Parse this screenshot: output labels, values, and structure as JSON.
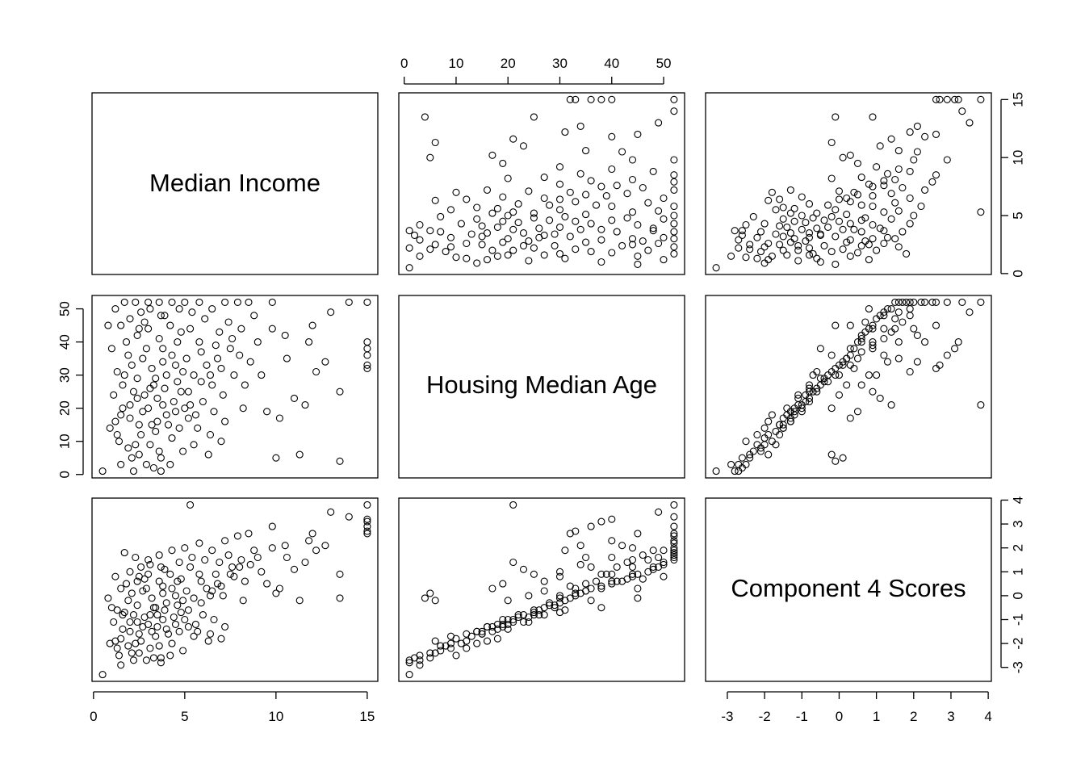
{
  "chart_data": {
    "type": "scatter",
    "variables": [
      {
        "key": "income",
        "label": "Median Income",
        "range": [
          0.5,
          15.0
        ]
      },
      {
        "key": "age",
        "label": "Housing Median Age",
        "range": [
          1,
          52
        ]
      },
      {
        "key": "comp4",
        "label": "Component 4 Scores",
        "range": [
          -3.3,
          3.8
        ]
      }
    ],
    "axes": {
      "income": {
        "ticks": [
          0,
          5,
          10,
          15
        ],
        "labels": [
          "0",
          "5",
          "10",
          "15"
        ]
      },
      "age": {
        "ticks": [
          0,
          10,
          20,
          30,
          40,
          50
        ],
        "labels": [
          "0",
          "10",
          "20",
          "30",
          "40",
          "50"
        ]
      },
      "comp4": {
        "ticks": [
          -3,
          -2,
          -1,
          0,
          1,
          2,
          3,
          4
        ],
        "labels": [
          "-3",
          "-2",
          "-1",
          "0",
          "1",
          "2",
          "3",
          "4"
        ]
      }
    },
    "grid": false,
    "legend": "none",
    "points": [
      [
        1.2,
        16,
        -1.9
      ],
      [
        1.5,
        18,
        -1.8
      ],
      [
        2.0,
        17,
        -1.5
      ],
      [
        2.5,
        15,
        -1.6
      ],
      [
        3.0,
        20,
        -1.2
      ],
      [
        3.5,
        16,
        -1.3
      ],
      [
        4.0,
        18,
        -1.4
      ],
      [
        2.2,
        25,
        -0.8
      ],
      [
        2.8,
        24,
        -0.9
      ],
      [
        3.3,
        27,
        -0.5
      ],
      [
        3.9,
        26,
        -0.6
      ],
      [
        4.4,
        22,
        -0.9
      ],
      [
        5.0,
        20,
        -1.0
      ],
      [
        5.6,
        18,
        -1.2
      ],
      [
        2.1,
        33,
        0.1
      ],
      [
        2.7,
        35,
        0.2
      ],
      [
        3.2,
        32,
        -0.1
      ],
      [
        3.8,
        34,
        0.1
      ],
      [
        4.3,
        36,
        0.3
      ],
      [
        4.9,
        31,
        -0.2
      ],
      [
        1.8,
        40,
        0.5
      ],
      [
        2.4,
        42,
        0.6
      ],
      [
        3.0,
        44,
        0.9
      ],
      [
        3.6,
        41,
        0.6
      ],
      [
        4.2,
        45,
        0.9
      ],
      [
        4.8,
        43,
        0.7
      ],
      [
        2.0,
        47,
        1.0
      ],
      [
        2.6,
        49,
        1.2
      ],
      [
        3.1,
        50,
        1.3
      ],
      [
        3.7,
        48,
        1.2
      ],
      [
        1.7,
        52,
        1.8
      ],
      [
        2.3,
        52,
        1.6
      ],
      [
        3.0,
        52,
        1.5
      ],
      [
        3.6,
        52,
        1.7
      ],
      [
        4.3,
        52,
        1.9
      ],
      [
        5.0,
        52,
        2.0
      ],
      [
        5.8,
        52,
        2.2
      ],
      [
        1.4,
        10,
        -2.5
      ],
      [
        1.9,
        8,
        -2.1
      ],
      [
        2.5,
        6,
        -2.4
      ],
      [
        3.1,
        9,
        -2.2
      ],
      [
        3.7,
        5,
        -2.6
      ],
      [
        4.3,
        11,
        -2.0
      ],
      [
        4.9,
        7,
        -2.3
      ],
      [
        0.9,
        14,
        -2.0
      ],
      [
        1.3,
        12,
        -2.2
      ],
      [
        2.4,
        29,
        -0.4
      ],
      [
        3.4,
        29,
        -0.5
      ],
      [
        4.6,
        28,
        -0.4
      ],
      [
        5.5,
        30,
        -0.1
      ],
      [
        6.2,
        33,
        0.3
      ],
      [
        6.8,
        35,
        0.5
      ],
      [
        7.5,
        38,
        0.9
      ],
      [
        5.2,
        25,
        -0.6
      ],
      [
        6.0,
        22,
        -0.8
      ],
      [
        6.6,
        19,
        -1.0
      ],
      [
        7.2,
        16,
        -1.3
      ],
      [
        5.7,
        14,
        -1.5
      ],
      [
        6.4,
        12,
        -1.6
      ],
      [
        7.0,
        10,
        -1.8
      ],
      [
        8.0,
        36,
        1.2
      ],
      [
        8.6,
        34,
        1.3
      ],
      [
        7.7,
        30,
        0.8
      ],
      [
        8.3,
        27,
        0.6
      ],
      [
        9.0,
        40,
        1.6
      ],
      [
        9.8,
        44,
        2.0
      ],
      [
        10.5,
        42,
        2.1
      ],
      [
        8.8,
        48,
        1.9
      ],
      [
        7.9,
        52,
        2.5
      ],
      [
        9.5,
        19,
        0.5
      ],
      [
        10.2,
        17,
        0.3
      ],
      [
        11.0,
        23,
        1.1
      ],
      [
        11.6,
        21,
        1.4
      ],
      [
        12.2,
        31,
        1.9
      ],
      [
        11.8,
        40,
        2.3
      ],
      [
        12.7,
        34,
        2.1
      ],
      [
        13.5,
        25,
        0.9
      ],
      [
        11.3,
        6,
        -0.2
      ],
      [
        10.0,
        5,
        0.1
      ],
      [
        13.0,
        49,
        3.5
      ],
      [
        13.5,
        4,
        -0.1
      ],
      [
        15.0,
        52,
        3.8
      ],
      [
        15.0,
        40,
        3.2
      ],
      [
        15.0,
        38,
        3.1
      ],
      [
        15.0,
        36,
        2.9
      ],
      [
        15.0,
        33,
        2.7
      ],
      [
        15.0,
        32,
        2.6
      ],
      [
        5.3,
        21,
        3.8
      ],
      [
        0.5,
        1,
        -3.3
      ],
      [
        1.5,
        3,
        -2.9
      ],
      [
        2.2,
        1,
        -2.7
      ],
      [
        3.3,
        2,
        -2.6
      ],
      [
        4.2,
        3,
        -2.5
      ],
      [
        1.1,
        24,
        -1.1
      ],
      [
        1.6,
        27,
        -0.8
      ],
      [
        1.3,
        31,
        -0.6
      ],
      [
        1.9,
        36,
        -0.2
      ],
      [
        1.5,
        45,
        0.3
      ],
      [
        2.8,
        46,
        0.7
      ],
      [
        3.8,
        38,
        0.4
      ],
      [
        4.6,
        40,
        0.6
      ],
      [
        5.3,
        44,
        1.2
      ],
      [
        6.1,
        47,
        1.5
      ],
      [
        5.8,
        40,
        0.9
      ],
      [
        6.5,
        27,
        0.2
      ],
      [
        7.1,
        24,
        0.0
      ],
      [
        2.6,
        12,
        -1.9
      ],
      [
        3.4,
        13,
        -1.7
      ],
      [
        4.1,
        15,
        -1.6
      ],
      [
        4.7,
        14,
        -1.5
      ],
      [
        2.9,
        38,
        0.3
      ],
      [
        3.5,
        23,
        -0.8
      ],
      [
        4.0,
        30,
        -0.3
      ],
      [
        4.5,
        33,
        0.0
      ],
      [
        2.0,
        21,
        -1.1
      ],
      [
        1.0,
        38,
        -0.5
      ],
      [
        0.8,
        45,
        -0.1
      ],
      [
        6.9,
        43,
        1.4
      ],
      [
        7.4,
        46,
        1.7
      ],
      [
        8.2,
        20,
        -0.2
      ],
      [
        9.2,
        30,
        1.0
      ],
      [
        10.6,
        35,
        1.6
      ],
      [
        12.0,
        45,
        2.6
      ],
      [
        14.0,
        52,
        3.3
      ],
      [
        2.3,
        9,
        -2.0
      ],
      [
        3.6,
        7,
        -2.1
      ],
      [
        5.5,
        9,
        -1.7
      ],
      [
        6.3,
        6,
        -1.9
      ],
      [
        1.7,
        30,
        -0.7
      ],
      [
        2.5,
        44,
        0.8
      ],
      [
        3.9,
        48,
        1.1
      ],
      [
        4.7,
        50,
        1.4
      ],
      [
        5.4,
        49,
        1.6
      ],
      [
        6.5,
        50,
        1.9
      ],
      [
        7.2,
        52,
        2.3
      ],
      [
        8.5,
        52,
        2.6
      ],
      [
        9.8,
        52,
        2.9
      ],
      [
        2.7,
        19,
        -1.3
      ],
      [
        3.2,
        15,
        -1.5
      ],
      [
        4.8,
        25,
        -0.7
      ],
      [
        5.1,
        35,
        0.2
      ],
      [
        5.9,
        37,
        0.6
      ],
      [
        6.7,
        39,
        0.9
      ],
      [
        1.2,
        50,
        0.8
      ],
      [
        2.1,
        5,
        -2.4
      ],
      [
        2.9,
        3,
        -2.7
      ],
      [
        3.7,
        1,
        -2.8
      ],
      [
        1.6,
        20,
        -1.4
      ],
      [
        2.4,
        23,
        -1.1
      ],
      [
        3.1,
        26,
        -0.8
      ],
      [
        3.8,
        21,
        -1.0
      ],
      [
        4.5,
        19,
        -1.2
      ],
      [
        5.2,
        17,
        -1.3
      ],
      [
        5.9,
        28,
        -0.3
      ],
      [
        6.4,
        30,
        0.0
      ],
      [
        7.0,
        32,
        0.4
      ],
      [
        7.6,
        41,
        1.2
      ],
      [
        8.1,
        44,
        1.5
      ]
    ]
  }
}
